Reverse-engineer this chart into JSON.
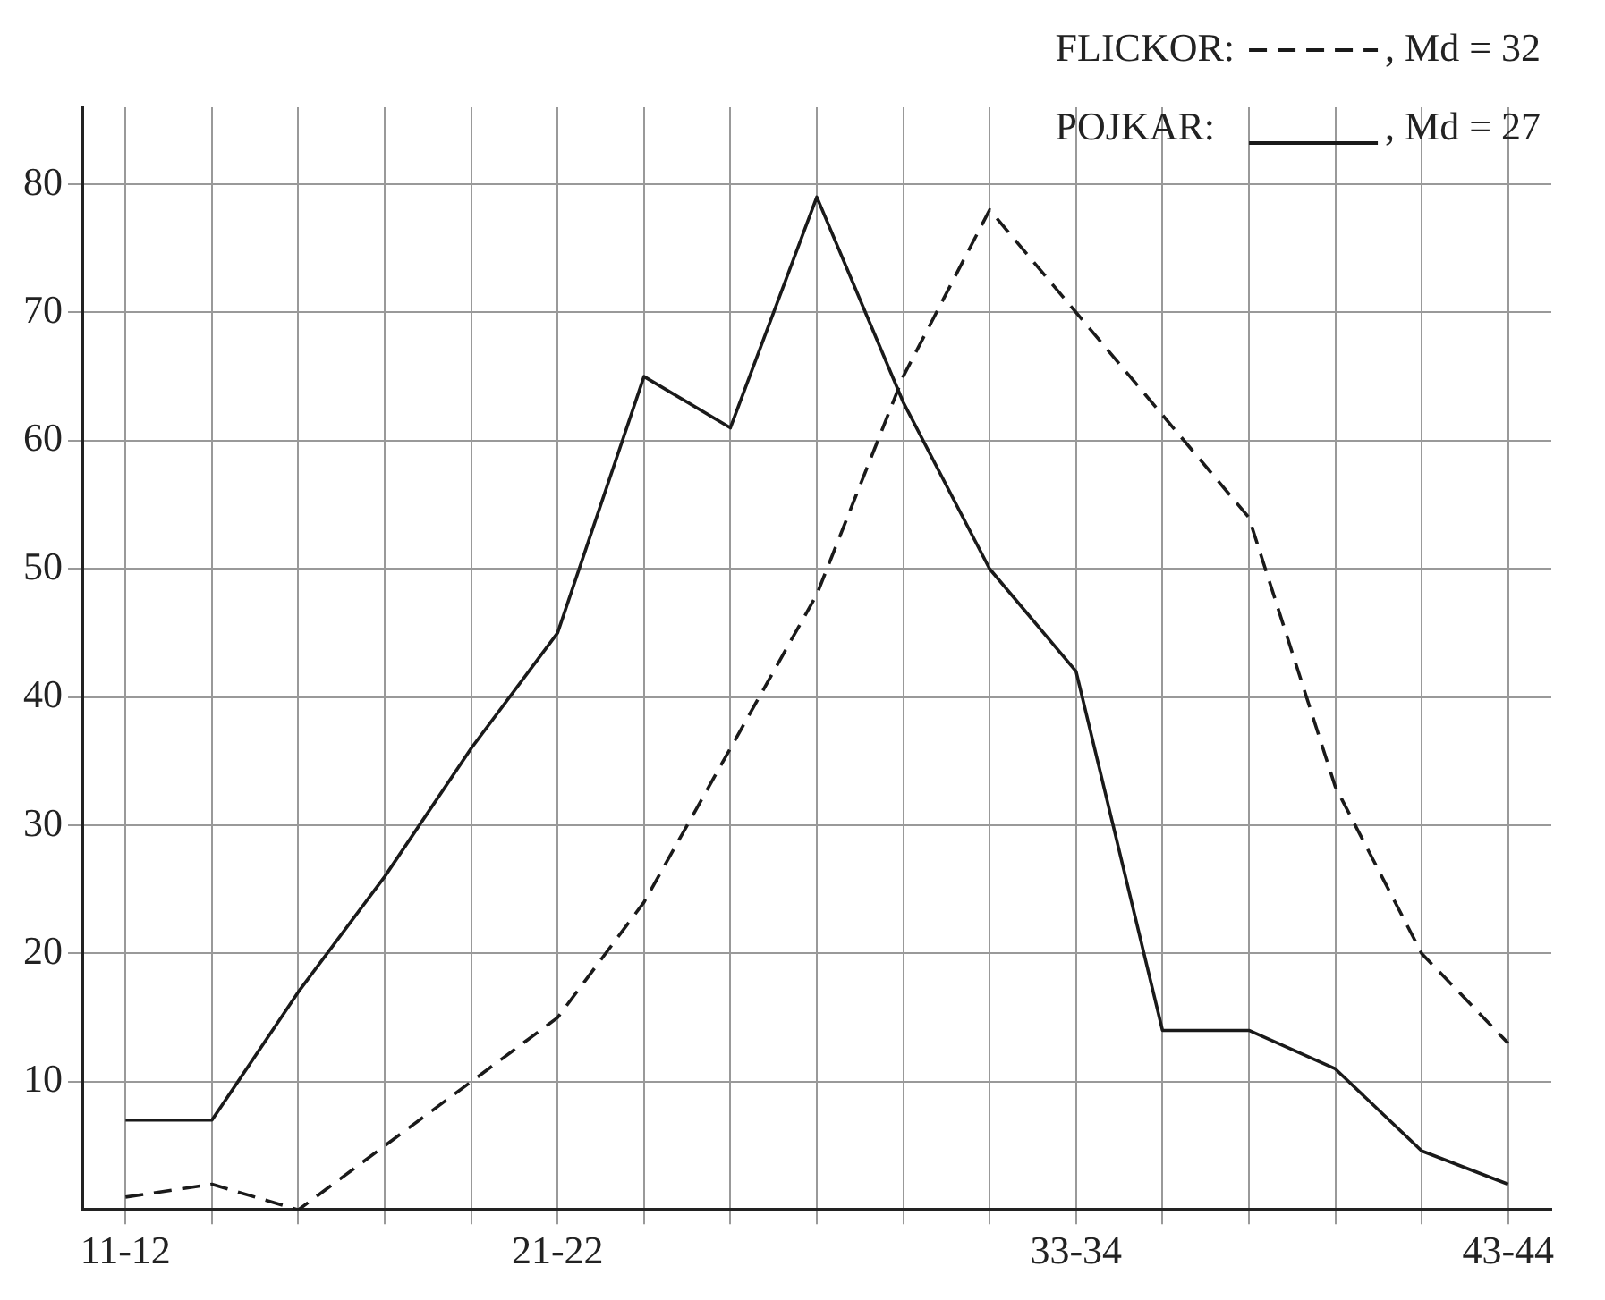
{
  "chart_data": {
    "type": "line",
    "categories": [
      "11-12",
      null,
      null,
      null,
      null,
      "21-22",
      null,
      null,
      null,
      null,
      null,
      "33-34",
      null,
      null,
      null,
      null,
      "43-44"
    ],
    "series": [
      {
        "name": "FLICKOR:",
        "color": "#1a1a1a",
        "line_style": "dashed",
        "values": [
          1,
          2,
          0,
          5,
          10,
          15,
          24,
          36,
          48,
          65,
          78,
          70,
          62,
          54,
          33,
          20,
          13
        ]
      },
      {
        "name": "POJKAR:",
        "color": "#1a1a1a",
        "line_style": "solid",
        "values": [
          7,
          7,
          17,
          26,
          36,
          45,
          65,
          61,
          79,
          63,
          50,
          42,
          14,
          14,
          11,
          4.6,
          2
        ]
      }
    ],
    "ylim": [
      0,
      86
    ],
    "yticks": [
      10,
      20,
      30,
      40,
      50,
      60,
      70,
      80
    ],
    "grid": true,
    "legend": "top right",
    "marker": "none",
    "annotations": [
      ", Md = 32",
      ", Md = 27"
    ]
  }
}
